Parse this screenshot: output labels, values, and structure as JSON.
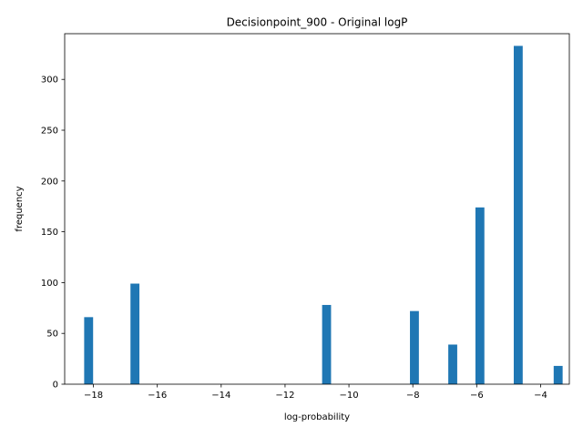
{
  "chart_data": {
    "type": "bar",
    "title": "Decisionpoint_900 - Original logP",
    "xlabel": "log-probability",
    "ylabel": "frequency",
    "xlim": [
      -18.9,
      -3.1
    ],
    "ylim": [
      0,
      345
    ],
    "bar_width": 0.28,
    "x_ticks": [
      -18,
      -16,
      -14,
      -12,
      -10,
      -8,
      -6,
      -4
    ],
    "y_ticks": [
      0,
      50,
      100,
      150,
      200,
      250,
      300
    ],
    "x": [
      -18.15,
      -16.7,
      -10.7,
      -7.95,
      -6.75,
      -5.9,
      -4.7,
      -3.45
    ],
    "values": [
      66,
      99,
      78,
      72,
      39,
      174,
      333,
      18
    ],
    "bar_color": "#1f77b4",
    "grid": false,
    "legend": "none"
  }
}
